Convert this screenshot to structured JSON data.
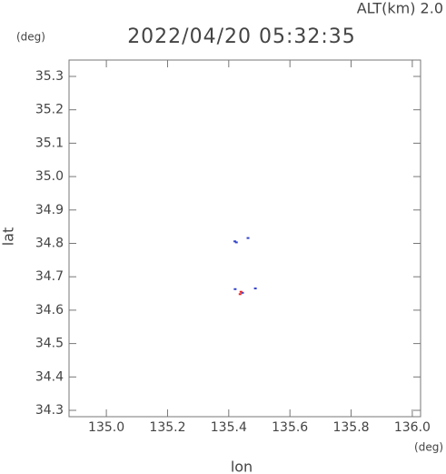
{
  "chart_data": {
    "type": "scatter",
    "title": "2022/04/20 05:32:35",
    "subtitle": "ALT(km) 2.0",
    "y_unit": "(deg)",
    "x_unit": "(deg)",
    "xlabel": "lon",
    "ylabel": "lat",
    "xlim": [
      134.878,
      136.027
    ],
    "ylim": [
      34.281,
      35.349
    ],
    "xticks": [
      {
        "value": 135,
        "label": "135.0"
      },
      135.2,
      135.4,
      135.6,
      135.8,
      {
        "value": 136,
        "label": "136.0"
      }
    ],
    "yticks": [
      34.3,
      34.4,
      34.5,
      34.6,
      34.7,
      34.8,
      34.9,
      {
        "value": 35,
        "label": "35.0"
      },
      35.1,
      35.2,
      35.3
    ],
    "series": [
      {
        "color": "#3344cc",
        "x": [
          135.42,
          135.425,
          135.463,
          135.421,
          135.445,
          135.487
        ],
        "values": [
          34.806,
          34.803,
          34.816,
          34.663,
          34.652,
          34.665
        ]
      },
      {
        "color": "#ee2222",
        "x": [
          135.44,
          135.437
        ],
        "values": [
          34.655,
          34.648
        ]
      }
    ]
  }
}
